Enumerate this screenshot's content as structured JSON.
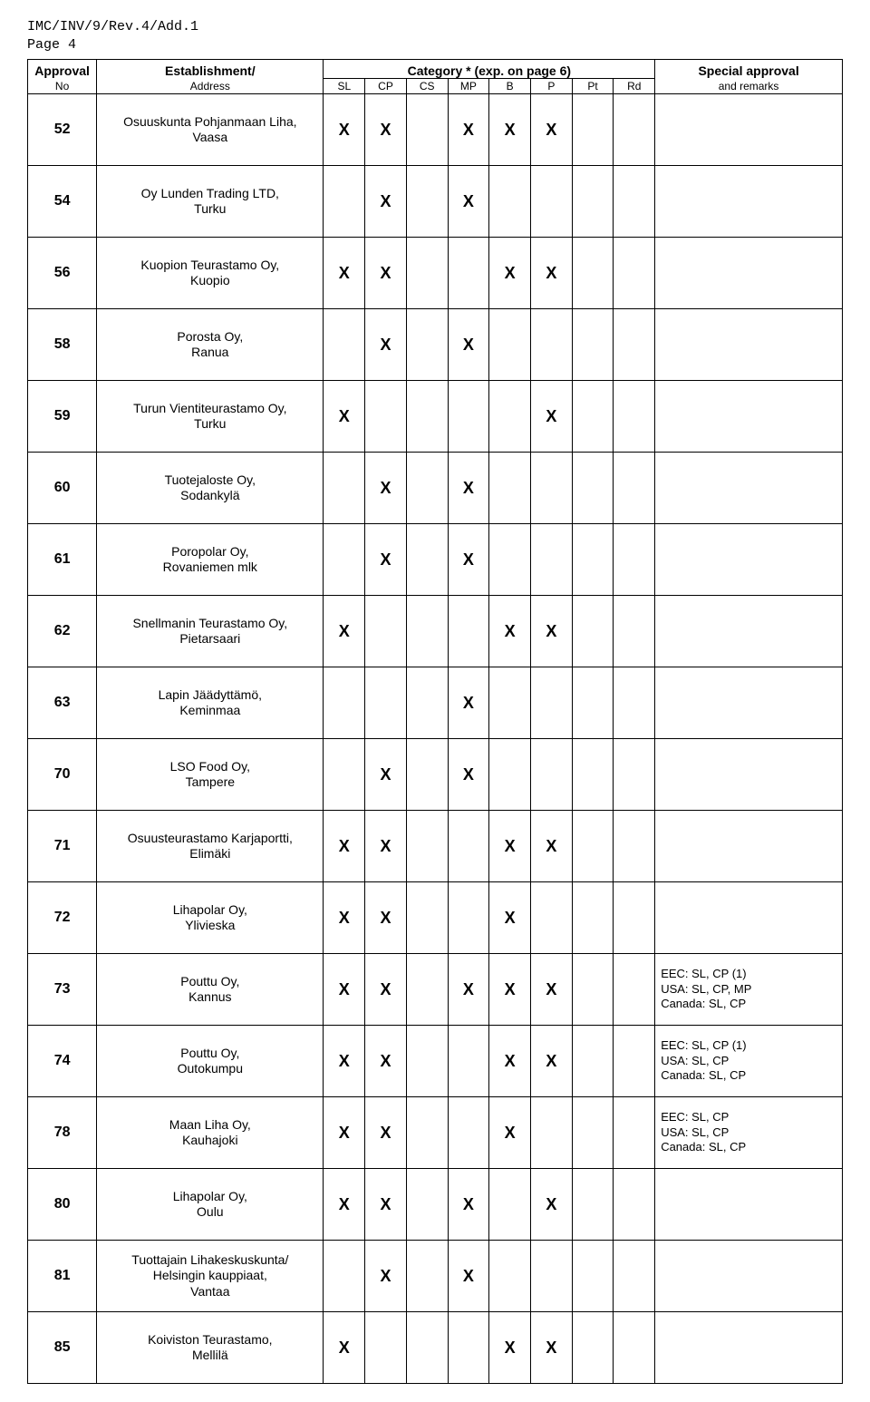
{
  "doc": {
    "ref": "IMC/INV/9/Rev.4/Add.1",
    "page": "Page 4"
  },
  "headers": {
    "approval_top": "Approval",
    "approval_bottom": "No",
    "establishment_top": "Establishment/",
    "establishment_bottom": "Address",
    "category_label": "Category * (exp. on page 6)",
    "remarks_top": "Special approval",
    "remarks_bottom": "and remarks",
    "cats": [
      "SL",
      "CP",
      "CS",
      "MP",
      "B",
      "P",
      "Pt",
      "Rd"
    ]
  },
  "rows": [
    {
      "no": "52",
      "name": "Osuuskunta Pohjanmaan Liha,",
      "addr": "Vaasa",
      "SL": "X",
      "CP": "X",
      "CS": "",
      "MP": "X",
      "B": "X",
      "P": "X",
      "Pt": "",
      "Rd": "",
      "remarks": ""
    },
    {
      "no": "54",
      "name": "Oy Lunden Trading LTD,",
      "addr": "Turku",
      "SL": "",
      "CP": "X",
      "CS": "",
      "MP": "X",
      "B": "",
      "P": "",
      "Pt": "",
      "Rd": "",
      "remarks": ""
    },
    {
      "no": "56",
      "name": "Kuopion Teurastamo Oy,",
      "addr": "Kuopio",
      "SL": "X",
      "CP": "X",
      "CS": "",
      "MP": "",
      "B": "X",
      "P": "X",
      "Pt": "",
      "Rd": "",
      "remarks": ""
    },
    {
      "no": "58",
      "name": "Porosta Oy,",
      "addr": "Ranua",
      "SL": "",
      "CP": "X",
      "CS": "",
      "MP": "X",
      "B": "",
      "P": "",
      "Pt": "",
      "Rd": "",
      "remarks": ""
    },
    {
      "no": "59",
      "name": "Turun Vientiteurastamo Oy,",
      "addr": "Turku",
      "SL": "X",
      "CP": "",
      "CS": "",
      "MP": "",
      "B": "",
      "P": "X",
      "Pt": "",
      "Rd": "",
      "remarks": ""
    },
    {
      "no": "60",
      "name": "Tuotejaloste Oy,",
      "addr": "Sodankylä",
      "SL": "",
      "CP": "X",
      "CS": "",
      "MP": "X",
      "B": "",
      "P": "",
      "Pt": "",
      "Rd": "",
      "remarks": ""
    },
    {
      "no": "61",
      "name": "Poropolar Oy,",
      "addr": "Rovaniemen mlk",
      "SL": "",
      "CP": "X",
      "CS": "",
      "MP": "X",
      "B": "",
      "P": "",
      "Pt": "",
      "Rd": "",
      "remarks": ""
    },
    {
      "no": "62",
      "name": "Snellmanin Teurastamo Oy,",
      "addr": "Pietarsaari",
      "SL": "X",
      "CP": "",
      "CS": "",
      "MP": "",
      "B": "X",
      "P": "X",
      "Pt": "",
      "Rd": "",
      "remarks": ""
    },
    {
      "no": "63",
      "name": "Lapin Jäädyttämö,",
      "addr": "Keminmaa",
      "SL": "",
      "CP": "",
      "CS": "",
      "MP": "X",
      "B": "",
      "P": "",
      "Pt": "",
      "Rd": "",
      "remarks": ""
    },
    {
      "no": "70",
      "name": "LSO Food Oy,",
      "addr": "Tampere",
      "SL": "",
      "CP": "X",
      "CS": "",
      "MP": "X",
      "B": "",
      "P": "",
      "Pt": "",
      "Rd": "",
      "remarks": ""
    },
    {
      "no": "71",
      "name": "Osuusteurastamo Karjaportti,",
      "addr": "Elimäki",
      "SL": "X",
      "CP": "X",
      "CS": "",
      "MP": "",
      "B": "X",
      "P": "X",
      "Pt": "",
      "Rd": "",
      "remarks": ""
    },
    {
      "no": "72",
      "name": "Lihapolar Oy,",
      "addr": "Ylivieska",
      "SL": "X",
      "CP": "X",
      "CS": "",
      "MP": "",
      "B": "X",
      "P": "",
      "Pt": "",
      "Rd": "",
      "remarks": ""
    },
    {
      "no": "73",
      "name": "Pouttu Oy,",
      "addr": "Kannus",
      "SL": "X",
      "CP": "X",
      "CS": "",
      "MP": "X",
      "B": "X",
      "P": "X",
      "Pt": "",
      "Rd": "",
      "remarks": "EEC: SL, CP (1)\nUSA: SL, CP, MP\nCanada: SL, CP"
    },
    {
      "no": "74",
      "name": "Pouttu Oy,",
      "addr": "Outokumpu",
      "SL": "X",
      "CP": "X",
      "CS": "",
      "MP": "",
      "B": "X",
      "P": "X",
      "Pt": "",
      "Rd": "",
      "remarks": "EEC: SL, CP (1)\nUSA: SL, CP\nCanada: SL, CP"
    },
    {
      "no": "78",
      "name": "Maan Liha Oy,",
      "addr": "Kauhajoki",
      "SL": "X",
      "CP": "X",
      "CS": "",
      "MP": "",
      "B": "X",
      "P": "",
      "Pt": "",
      "Rd": "",
      "remarks": "EEC: SL, CP\nUSA: SL, CP\nCanada: SL, CP"
    },
    {
      "no": "80",
      "name": "Lihapolar Oy,",
      "addr": "Oulu",
      "SL": "X",
      "CP": "X",
      "CS": "",
      "MP": "X",
      "B": "",
      "P": "X",
      "Pt": "",
      "Rd": "",
      "remarks": ""
    },
    {
      "no": "81",
      "name": "Tuottajain Lihakeskuskunta/",
      "addr": "Helsingin kauppiaat,\nVantaa",
      "SL": "",
      "CP": "X",
      "CS": "",
      "MP": "X",
      "B": "",
      "P": "",
      "Pt": "",
      "Rd": "",
      "remarks": ""
    },
    {
      "no": "85",
      "name": "Koiviston Teurastamo,",
      "addr": "Mellilä",
      "SL": "X",
      "CP": "",
      "CS": "",
      "MP": "",
      "B": "X",
      "P": "X",
      "Pt": "",
      "Rd": "",
      "remarks": ""
    }
  ]
}
